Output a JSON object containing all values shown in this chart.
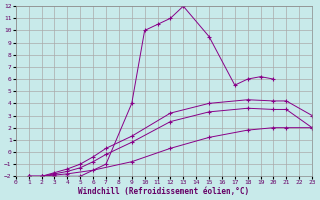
{
  "xlabel": "Windchill (Refroidissement éolien,°C)",
  "background_color": "#c8eaea",
  "grid_color": "#aaaaaa",
  "line_color": "#880088",
  "xlim": [
    0,
    23
  ],
  "ylim": [
    -2,
    12
  ],
  "xticks": [
    0,
    1,
    2,
    3,
    4,
    5,
    6,
    7,
    8,
    9,
    10,
    11,
    12,
    13,
    14,
    15,
    16,
    17,
    18,
    19,
    20,
    21,
    22,
    23
  ],
  "yticks": [
    -2,
    -1,
    0,
    1,
    2,
    3,
    4,
    5,
    6,
    7,
    8,
    9,
    10,
    11,
    12
  ],
  "curves": [
    {
      "x": [
        1,
        2,
        3,
        4,
        5,
        7,
        9,
        10,
        11,
        12,
        13,
        15,
        17,
        18,
        19,
        20
      ],
      "y": [
        -2,
        -2,
        -2,
        -2,
        -2,
        -1,
        4,
        10,
        10.5,
        11,
        12,
        9.5,
        5.5,
        6,
        6.2,
        6
      ]
    },
    {
      "x": [
        1,
        2,
        3,
        4,
        5,
        6,
        7,
        9,
        12,
        15,
        18,
        20,
        21,
        23
      ],
      "y": [
        -2,
        -2,
        -1.8,
        -1.6,
        -1.3,
        -0.8,
        -0.2,
        0.8,
        2.5,
        3.3,
        3.6,
        3.5,
        3.5,
        2.0
      ]
    },
    {
      "x": [
        1,
        2,
        3,
        4,
        5,
        6,
        7,
        9,
        12,
        15,
        18,
        20,
        21,
        23
      ],
      "y": [
        -2,
        -2,
        -1.7,
        -1.4,
        -1.0,
        -0.4,
        0.3,
        1.3,
        3.2,
        4.0,
        4.3,
        4.2,
        4.2,
        3.0
      ]
    },
    {
      "x": [
        1,
        2,
        3,
        4,
        6,
        9,
        12,
        15,
        18,
        20,
        21,
        23
      ],
      "y": [
        -2,
        -2,
        -1.9,
        -1.8,
        -1.5,
        -0.8,
        0.3,
        1.2,
        1.8,
        2.0,
        2.0,
        2.0
      ]
    }
  ]
}
